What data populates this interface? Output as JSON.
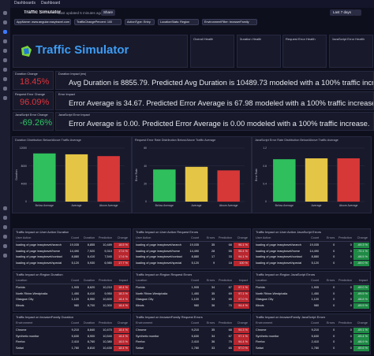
{
  "topbar": {
    "crumb1": "Dashboards",
    "crumb2": "Dashboard"
  },
  "header": {
    "title": "Traffic Simulator",
    "updated": "Last updated 5 minutes ago",
    "share": "Share",
    "timeframe": "Last 7 days"
  },
  "filters": [
    "AppName: www.angular.easytravel.com",
    "TrafficChangePercent: 100",
    "ActionType: Entry",
    "LocationStats: Region",
    "EnvironmentFilter: browserFamily"
  ],
  "logo": "Traffic Simulator",
  "health": [
    "Overall Health",
    "Duration Health",
    "Request Error Health",
    "JavaScript Error Health"
  ],
  "metrics": [
    {
      "label": "Duration Change",
      "percent": "18.45%",
      "impact_label": "Duration Impact (ms)",
      "text": "Avg Duration is 8855.79. Predicted Avg Duration is 10489.73 modeled with a 100% traffic increase.",
      "color": "#e0333b"
    },
    {
      "label": "Request Error Change",
      "percent": "96.09%",
      "impact_label": "Error Impact",
      "text": "Error Average is 34.67. Predicted Error Average is 67.98 modeled with a 100% traffic increase.",
      "color": "#e0333b"
    },
    {
      "label": "JavaScript Error Change",
      "percent": "-69.26%",
      "impact_label": "JavaScript Error Impact",
      "text": "Error Average is 0.00. Predicted Error Average is 0.00 modeled with a 100% traffic increase.",
      "color": "#2fc566"
    }
  ],
  "chart_data": [
    {
      "type": "bar",
      "title": "Duration Distribution Below/Above Traffic Average",
      "y_label": "Duration",
      "categories": [
        "Below Average",
        "Average",
        "Above Average"
      ],
      "values": [
        10800,
        10600,
        10200
      ],
      "colors": [
        "#2fbf5c",
        "#e5c545",
        "#d63838"
      ],
      "ylim": [
        0,
        12000
      ],
      "yticks": [
        0,
        4000,
        8000,
        12000
      ]
    },
    {
      "type": "bar",
      "title": "Request Error Rate Distribution Below/Above Traffic Average",
      "y_label": "Error Rate",
      "categories": [
        "Below Average",
        "Average",
        "Above Average"
      ],
      "values": [
        36,
        39,
        35
      ],
      "colors": [
        "#2fbf5c",
        "#e5c545",
        "#d63838"
      ],
      "ylim": [
        0,
        60
      ],
      "yticks": [
        0,
        20,
        40,
        60
      ]
    },
    {
      "type": "bar",
      "title": "JavaScript Error Rate Distribution Below/Above Traffic Average",
      "y_label": "Error Rate",
      "categories": [
        "Below Average",
        "Average",
        "Above Average"
      ],
      "values": [
        0.95,
        0.97,
        0.97
      ],
      "colors": [
        "#2fbf5c",
        "#e5c545",
        "#d63838"
      ],
      "ylim": [
        0,
        1.2
      ],
      "yticks": [
        0,
        0.4,
        0.8,
        1.2
      ]
    }
  ],
  "tables": [
    {
      "title": "Traffic Impact on User Action Duration",
      "columns": [
        "User Action",
        "Count",
        "Duration",
        "Prediction",
        "Change"
      ],
      "rows": [
        [
          "loading of page /easytravel/search",
          "19,035",
          "8,855",
          "10,489",
          "18.5 %"
        ],
        [
          "loading of page /easytravel/home",
          "14,490",
          "7,920",
          "9,310",
          "17.6 %"
        ],
        [
          "loading of page /easytravel/contact",
          "8,880",
          "6,410",
          "7,540",
          "17.6 %"
        ],
        [
          "loading of page /easytravel/special",
          "5,120",
          "5,930",
          "6,980",
          "17.7 %"
        ]
      ]
    },
    {
      "title": "Traffic Impact on User Action Request Errors",
      "columns": [
        "User Action",
        "Count",
        "Errors",
        "Prediction",
        "Change"
      ],
      "rows": [
        [
          "loading of page /easytravel/search",
          "19,035",
          "35",
          "68",
          "96.1 %"
        ],
        [
          "loading of page /easytravel/home",
          "14,490",
          "28",
          "55",
          "96.4 %"
        ],
        [
          "loading of page /easytravel/contact",
          "8,880",
          "17",
          "33",
          "94.1 %"
        ],
        [
          "loading of page /easytravel/special",
          "5,120",
          "9",
          "18",
          "100 %"
        ]
      ]
    },
    {
      "title": "Traffic Impact on User Action JavaScript Errors",
      "columns": [
        "User Action",
        "Count",
        "Errors",
        "Prediction",
        "Change"
      ],
      "rows": [
        [
          "loading of page /easytravel/search",
          "19,035",
          "0",
          "0",
          "-69.3 %"
        ],
        [
          "loading of page /easytravel/home",
          "14,490",
          "0",
          "0",
          "-70.1 %"
        ],
        [
          "loading of page /easytravel/contact",
          "8,880",
          "0",
          "0",
          "-68.5 %"
        ],
        [
          "loading of page /easytravel/special",
          "5,120",
          "0",
          "0",
          "-69.0 %"
        ]
      ]
    },
    {
      "title": "Traffic Impact on Region Duration",
      "columns": [
        "Location",
        "Count",
        "Duration",
        "Prediction",
        "Impact"
      ],
      "rows": [
        [
          "Florida",
          "1,905",
          "8,620",
          "10,210",
          "18.4 %"
        ],
        [
          "North Rhine-Westphalia",
          "1,450",
          "8,410",
          "9,950",
          "18.3 %"
        ],
        [
          "Glasgow City",
          "1,120",
          "8,950",
          "10,600",
          "18.4 %"
        ],
        [
          "Illinois",
          "980",
          "8,700",
          "10,300",
          "18.4 %"
        ]
      ]
    },
    {
      "title": "Traffic Impact on Region Request Errors",
      "columns": [
        "Location",
        "Count",
        "Errors",
        "Prediction",
        "Impact"
      ],
      "rows": [
        [
          "Florida",
          "1,905",
          "34",
          "67",
          "97.1 %"
        ],
        [
          "North Rhine-Westphalia",
          "1,450",
          "35",
          "69",
          "97.1 %"
        ],
        [
          "Glasgow City",
          "1,120",
          "33",
          "65",
          "97.0 %"
        ],
        [
          "Illinois",
          "980",
          "36",
          "70",
          "94.4 %"
        ]
      ]
    },
    {
      "title": "Traffic Impact on Region JavaScript Errors",
      "columns": [
        "Location",
        "Count",
        "Errors",
        "Prediction",
        "Impact"
      ],
      "rows": [
        [
          "Florida",
          "1,905",
          "0",
          "0",
          "-69.0 %"
        ],
        [
          "North Rhine-Westphalia",
          "1,450",
          "0",
          "0",
          "-69.5 %"
        ],
        [
          "Glasgow City",
          "1,120",
          "0",
          "0",
          "-68.8 %"
        ],
        [
          "Illinois",
          "980",
          "0",
          "0",
          "-69.9 %"
        ]
      ]
    },
    {
      "title": "Traffic Impact on browserFamily Duration",
      "columns": [
        "Environment",
        "Count",
        "Duration",
        "Prediction",
        "Change"
      ],
      "rows": [
        [
          "Chrome",
          "9,210",
          "8,840",
          "10,470",
          "18.4 %"
        ],
        [
          "Synthetic monitor",
          "5,630",
          "8,900",
          "10,540",
          "18.4 %"
        ],
        [
          "Firefox",
          "2,410",
          "8,760",
          "10,380",
          "18.5 %"
        ],
        [
          "Safari",
          "1,780",
          "8,810",
          "10,430",
          "18.4 %"
        ]
      ]
    },
    {
      "title": "Traffic Impact on browserFamily Request Errors",
      "columns": [
        "Environment",
        "Count",
        "Errors",
        "Prediction",
        "Change"
      ],
      "rows": [
        [
          "Chrome",
          "9,210",
          "35",
          "68",
          "94.3 %"
        ],
        [
          "Synthetic monitor",
          "5,630",
          "34",
          "67",
          "97.1 %"
        ],
        [
          "Firefox",
          "2,410",
          "36",
          "70",
          "94.4 %"
        ],
        [
          "Safari",
          "1,780",
          "33",
          "65",
          "97.0 %"
        ]
      ]
    },
    {
      "title": "Traffic Impact on browserFamily JavaScript Errors",
      "columns": [
        "Environment",
        "Count",
        "Errors",
        "Prediction",
        "Change"
      ],
      "rows": [
        [
          "Chrome",
          "9,210",
          "0",
          "0",
          "-69.1 %"
        ],
        [
          "Synthetic monitor",
          "5,630",
          "0",
          "0",
          "-69.4 %"
        ],
        [
          "Firefox",
          "2,410",
          "0",
          "0",
          "-68.9 %"
        ],
        [
          "Safari",
          "1,780",
          "0",
          "0",
          "-69.6 %"
        ]
      ]
    }
  ]
}
